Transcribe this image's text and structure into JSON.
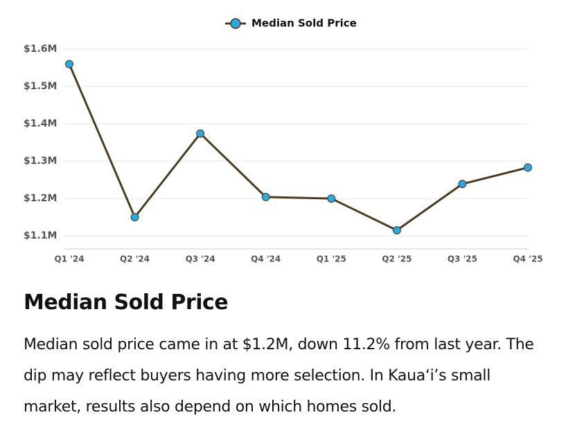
{
  "chart_data": {
    "type": "line",
    "categories": [
      "Q1 '24",
      "Q2 '24",
      "Q3 '24",
      "Q4 '24",
      "Q1 '25",
      "Q2 '25",
      "Q3 '25",
      "Q4 '25"
    ],
    "series": [
      {
        "name": "Median Sold Price",
        "color": "#4a3c1f",
        "marker_color": "#29a9e0",
        "values": [
          1560000,
          1150000,
          1374000,
          1204000,
          1200000,
          1115000,
          1239000,
          1283000
        ]
      }
    ],
    "ylim": [
      1065000,
      1600000
    ],
    "yticks": [
      {
        "value": 1100000,
        "label": "$1.1M"
      },
      {
        "value": 1200000,
        "label": "$1.2M"
      },
      {
        "value": 1300000,
        "label": "$1.3M"
      },
      {
        "value": 1400000,
        "label": "$1.4M"
      },
      {
        "value": 1500000,
        "label": "$1.5M"
      },
      {
        "value": 1600000,
        "label": "$1.6M"
      }
    ],
    "grid": true,
    "legend": "top"
  },
  "article": {
    "heading": "Median Sold Price",
    "body": "Median sold price came in at $1.2M, down 11.2% from last year. The dip may reflect buyers having more selection. In Kaua‘i’s small market, results also depend on which homes sold."
  }
}
